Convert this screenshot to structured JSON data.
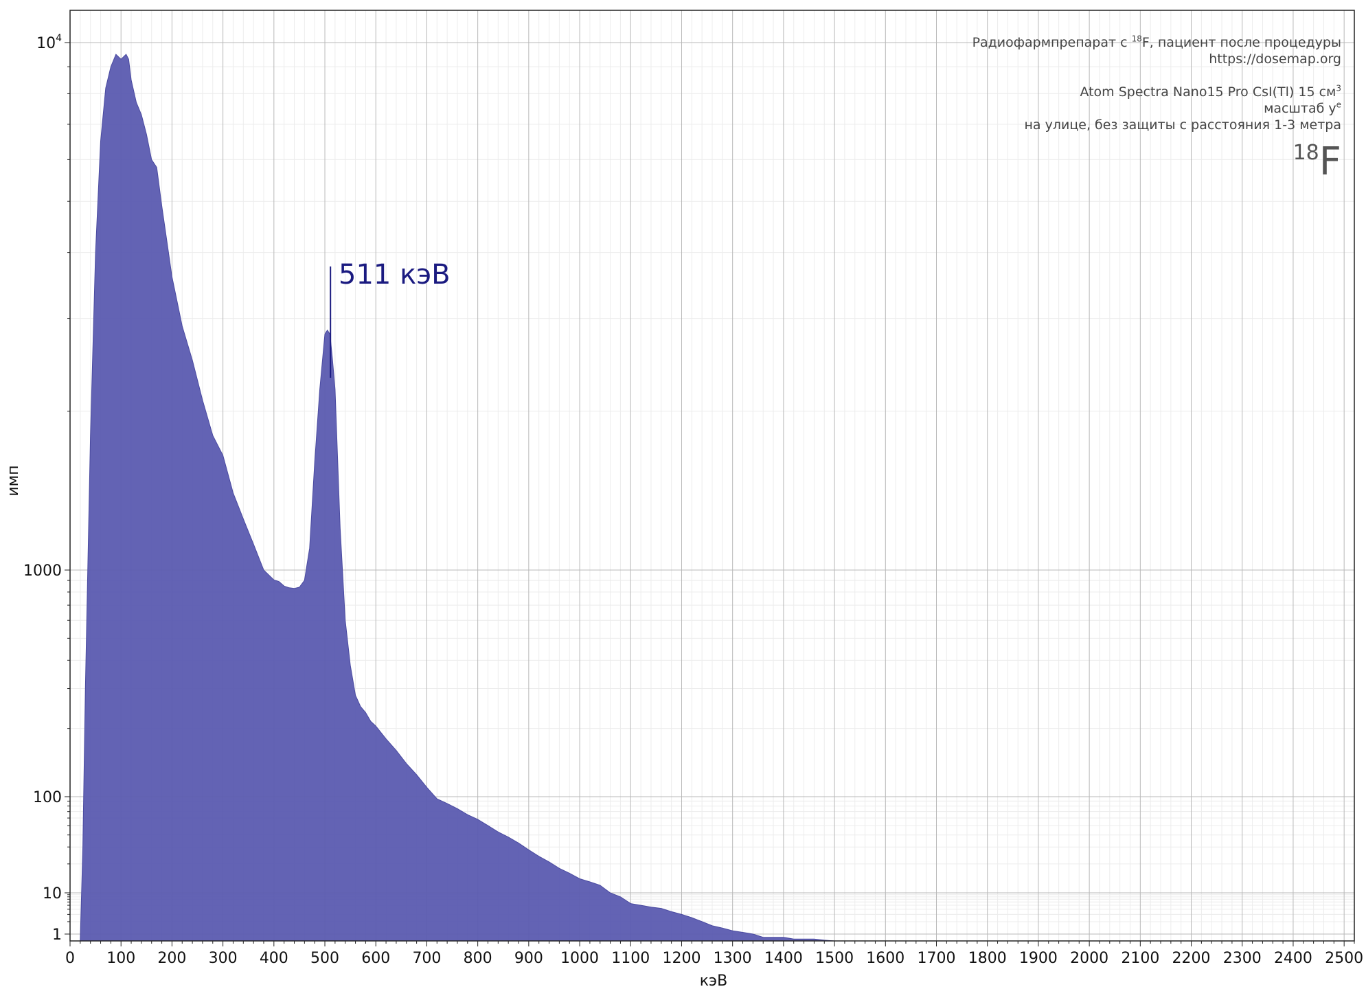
{
  "chart_data": {
    "type": "area",
    "xlabel": "кэВ",
    "ylabel": "имп",
    "xlim": [
      0,
      2520
    ],
    "ylim": [
      0.8,
      12000
    ],
    "yscale": "symlog",
    "grid": true,
    "x_ticks": [
      0,
      100,
      200,
      300,
      400,
      500,
      600,
      700,
      800,
      900,
      1000,
      1100,
      1200,
      1300,
      1400,
      1500,
      1600,
      1700,
      1800,
      1900,
      2000,
      2100,
      2200,
      2300,
      2400,
      2500
    ],
    "y_ticks": [
      {
        "value": 1,
        "label": "1"
      },
      {
        "value": 10,
        "label": "10"
      },
      {
        "value": 100,
        "label": "100"
      },
      {
        "value": 1000,
        "label": "1000"
      },
      {
        "value": 10000,
        "label": "10",
        "exp": "4"
      }
    ],
    "fill_color": "#5b5bb0",
    "series": [
      {
        "x": [
          20,
          25,
          30,
          40,
          50,
          60,
          70,
          80,
          90,
          100,
          110,
          115,
          120,
          130,
          140,
          150,
          160,
          170,
          180,
          190,
          200,
          220,
          240,
          260,
          280,
          300,
          320,
          340,
          360,
          380,
          400,
          410,
          420,
          430,
          440,
          450,
          460,
          470,
          480,
          490,
          500,
          505,
          510,
          515,
          520,
          530,
          540,
          550,
          560,
          570,
          580,
          590,
          600,
          620,
          640,
          660,
          680,
          700,
          720,
          740,
          760,
          780,
          800,
          820,
          840,
          860,
          880,
          900,
          920,
          940,
          960,
          980,
          1000,
          1020,
          1040,
          1060,
          1080,
          1100,
          1120,
          1140,
          1160,
          1180,
          1200,
          1220,
          1240,
          1260,
          1280,
          1300,
          1320,
          1340,
          1360,
          1380,
          1400,
          1420,
          1440,
          1460,
          1480,
          1500
        ],
        "y": [
          0.8,
          30,
          300,
          1800,
          4000,
          6500,
          8200,
          9000,
          9500,
          9300,
          9500,
          9300,
          8500,
          7700,
          7300,
          6700,
          6000,
          5800,
          4900,
          4200,
          3600,
          2900,
          2500,
          2100,
          1800,
          1650,
          1400,
          1250,
          1120,
          1000,
          905,
          890,
          850,
          835,
          830,
          840,
          900,
          1100,
          1600,
          2200,
          2800,
          2850,
          2800,
          2500,
          2200,
          1200,
          600,
          380,
          280,
          250,
          235,
          215,
          205,
          180,
          160,
          140,
          125,
          110,
          95,
          85,
          75,
          65,
          58,
          50,
          43,
          38,
          33,
          28,
          24,
          21,
          18,
          16,
          14,
          13,
          12,
          10,
          8,
          5.5,
          5,
          4.5,
          4.2,
          3.5,
          3,
          2.5,
          2,
          1.6,
          1.4,
          1.2,
          1.1,
          1.0,
          0.9,
          0.9,
          0.9,
          0.85,
          0.85,
          0.85,
          0.82,
          0.8
        ]
      }
    ],
    "annotations": [
      {
        "x": 511,
        "label": "511 кэВ"
      }
    ]
  },
  "info": {
    "line1_pre": "Радиофармпрепарат с ",
    "line1_sup": "18",
    "line1_post": "F, пациент после процедуры",
    "line2": "https://dosemap.org",
    "line3_pre": "Atom Spectra Nano15 Pro CsI(Tl) 15 см",
    "line3_sup": "3",
    "line4_pre": "масштаб y",
    "line4_sup": "e",
    "line5": "на улице, без защиты с расстояния 1-3 метра",
    "isotope_mass": "18",
    "isotope_symbol": "F"
  }
}
